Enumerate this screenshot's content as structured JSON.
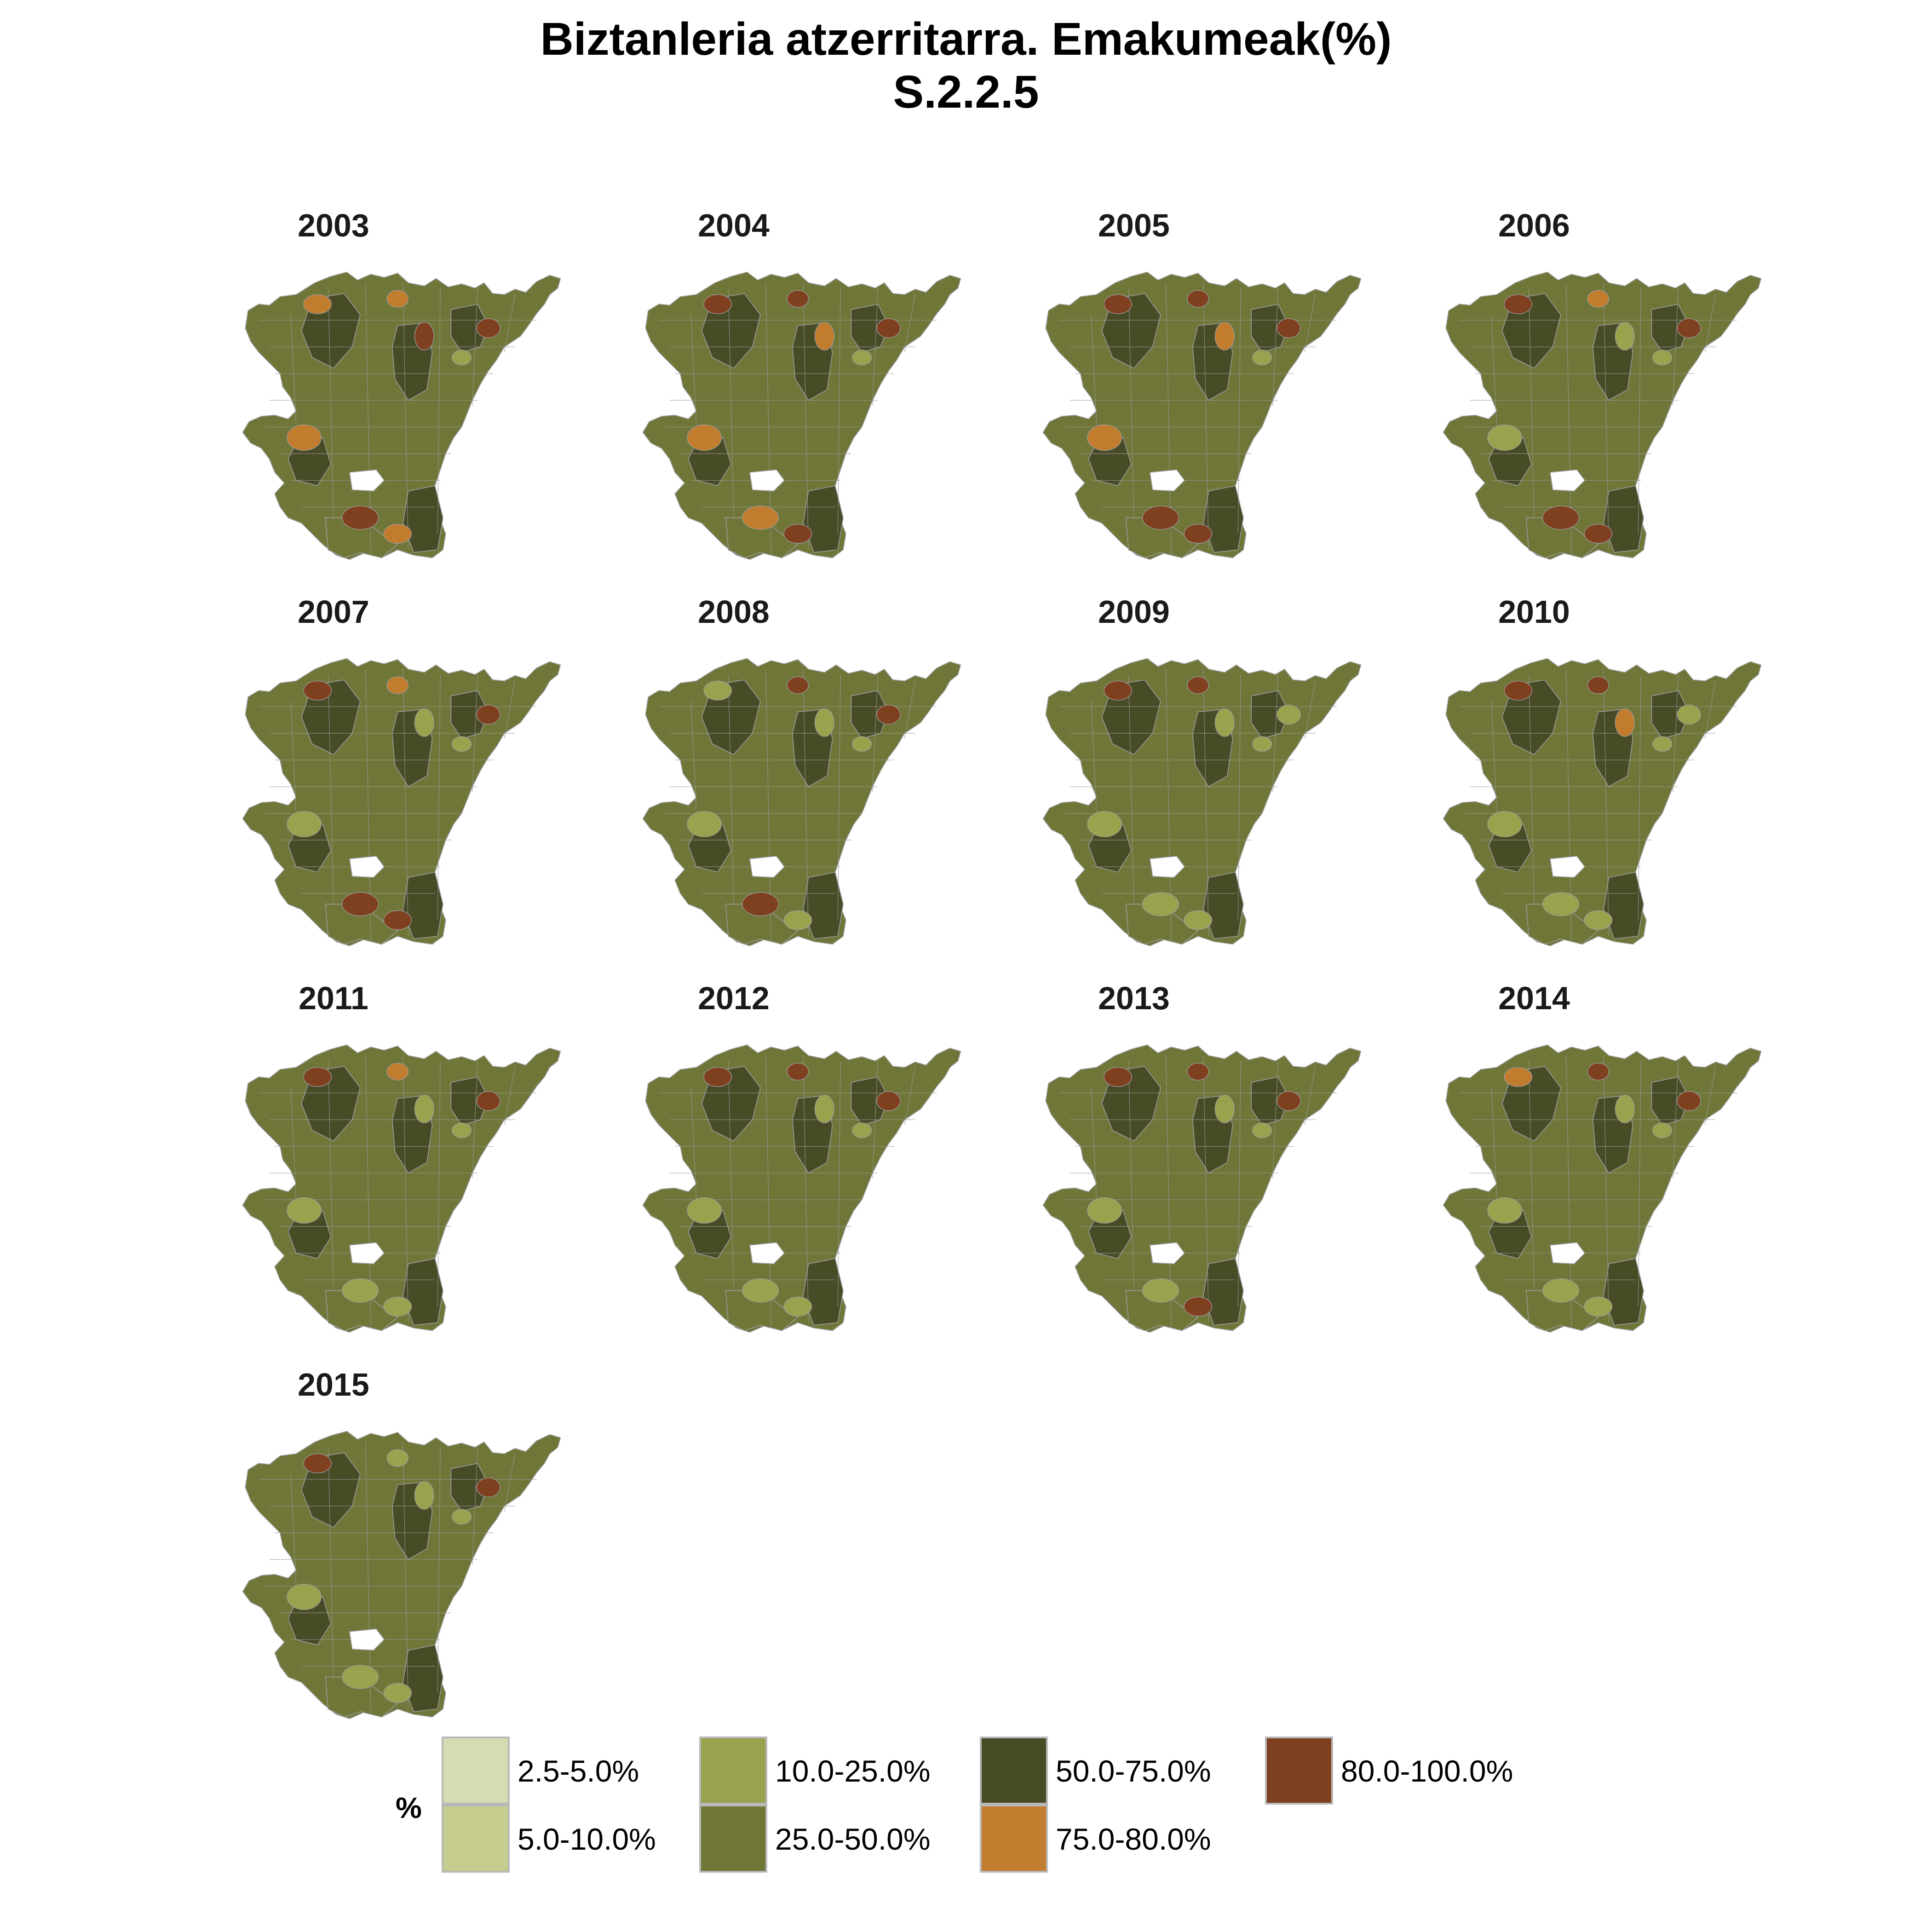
{
  "title": {
    "line1": "Biztanleria atzerritarra. Emakumeak(%)",
    "line2": "S.2.2.5"
  },
  "panels": [
    {
      "year": "2003",
      "highlight": [
        "#c17c2e",
        "#c17c2e",
        "#7f4020",
        "#7f4020",
        "#7f4020",
        "#c17c2e",
        "#9aa24d",
        "#c17c2e"
      ]
    },
    {
      "year": "2004",
      "highlight": [
        "#7f4020",
        "#7f4020",
        "#c17c2e",
        "#7f4020",
        "#c17c2e",
        "#c17c2e",
        "#9aa24d",
        "#7f4020"
      ]
    },
    {
      "year": "2005",
      "highlight": [
        "#7f4020",
        "#7f4020",
        "#c17c2e",
        "#7f4020",
        "#7f4020",
        "#c17c2e",
        "#9aa24d",
        "#7f4020"
      ]
    },
    {
      "year": "2006",
      "highlight": [
        "#7f4020",
        "#c17c2e",
        "#9aa24d",
        "#7f4020",
        "#7f4020",
        "#9aa24d",
        "#9aa24d",
        "#7f4020"
      ]
    },
    {
      "year": "2007",
      "highlight": [
        "#7f4020",
        "#c17c2e",
        "#9aa24d",
        "#7f4020",
        "#7f4020",
        "#9aa24d",
        "#9aa24d",
        "#7f4020"
      ]
    },
    {
      "year": "2008",
      "highlight": [
        "#9aa24d",
        "#7f4020",
        "#9aa24d",
        "#7f4020",
        "#7f4020",
        "#9aa24d",
        "#9aa24d",
        "#9aa24d"
      ]
    },
    {
      "year": "2009",
      "highlight": [
        "#7f4020",
        "#7f4020",
        "#9aa24d",
        "#9aa24d",
        "#9aa24d",
        "#9aa24d",
        "#9aa24d",
        "#9aa24d"
      ]
    },
    {
      "year": "2010",
      "highlight": [
        "#7f4020",
        "#7f4020",
        "#c17c2e",
        "#9aa24d",
        "#9aa24d",
        "#9aa24d",
        "#9aa24d",
        "#9aa24d"
      ]
    },
    {
      "year": "2011",
      "highlight": [
        "#7f4020",
        "#c17c2e",
        "#9aa24d",
        "#7f4020",
        "#9aa24d",
        "#9aa24d",
        "#9aa24d",
        "#9aa24d"
      ]
    },
    {
      "year": "2012",
      "highlight": [
        "#7f4020",
        "#7f4020",
        "#9aa24d",
        "#7f4020",
        "#9aa24d",
        "#9aa24d",
        "#9aa24d",
        "#9aa24d"
      ]
    },
    {
      "year": "2013",
      "highlight": [
        "#7f4020",
        "#7f4020",
        "#9aa24d",
        "#7f4020",
        "#9aa24d",
        "#9aa24d",
        "#9aa24d",
        "#7f4020"
      ]
    },
    {
      "year": "2014",
      "highlight": [
        "#c17c2e",
        "#7f4020",
        "#9aa24d",
        "#7f4020",
        "#9aa24d",
        "#9aa24d",
        "#9aa24d",
        "#9aa24d"
      ]
    },
    {
      "year": "2015",
      "highlight": [
        "#7f4020",
        "#9aa24d",
        "#9aa24d",
        "#7f4020",
        "#9aa24d",
        "#9aa24d",
        "#9aa24d",
        "#9aa24d"
      ]
    }
  ],
  "legend": {
    "title": "%",
    "items": [
      {
        "label": "2.5-5.0%",
        "color": "#d7dbb2"
      },
      {
        "label": "5.0-10.0%",
        "color": "#c5cc8e"
      },
      {
        "label": "10.0-25.0%",
        "color": "#9aa24d"
      },
      {
        "label": "25.0-50.0%",
        "color": "#6f7637"
      },
      {
        "label": "50.0-75.0%",
        "color": "#474b26"
      },
      {
        "label": "75.0-80.0%",
        "color": "#c17c2e"
      },
      {
        "label": "80.0-100.0%",
        "color": "#7f4020"
      }
    ]
  },
  "colors": {
    "base": "#6f7637",
    "dark": "#474b26",
    "border": "#9a9a9a"
  }
}
